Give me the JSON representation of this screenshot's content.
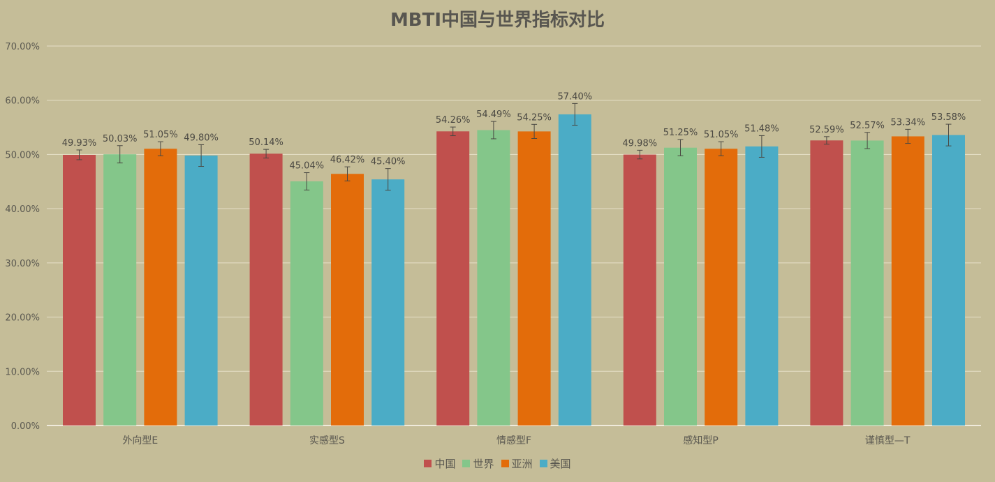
{
  "chart_data": {
    "type": "bar",
    "title": "MBTI中国与世界指标对比",
    "xlabel": "",
    "ylabel": "",
    "ylim": [
      0,
      70
    ],
    "y_ticks": [
      "0.00%",
      "10.00%",
      "20.00%",
      "30.00%",
      "40.00%",
      "50.00%",
      "60.00%",
      "70.00%"
    ],
    "grid": true,
    "legend_position": "bottom",
    "categories": [
      "外向型E",
      "实感型S",
      "情感型F",
      "感知型P",
      "谨慎型—T"
    ],
    "series": [
      {
        "name": "中国",
        "color": "#c0504d",
        "values": [
          49.93,
          50.14,
          54.26,
          49.98,
          52.59
        ],
        "labels": [
          "49.93%",
          "50.14%",
          "54.26%",
          "49.98%",
          "52.59%"
        ],
        "error": [
          0.9,
          0.8,
          0.8,
          0.8,
          0.7
        ]
      },
      {
        "name": "世界",
        "color": "#84c68a",
        "values": [
          50.03,
          45.04,
          54.49,
          51.25,
          52.57
        ],
        "labels": [
          "50.03%",
          "45.04%",
          "54.49%",
          "51.25%",
          "52.57%"
        ],
        "error": [
          1.6,
          1.6,
          1.6,
          1.5,
          1.5
        ]
      },
      {
        "name": "亚洲",
        "color": "#e36c0a",
        "values": [
          51.05,
          46.42,
          54.25,
          51.05,
          53.34
        ],
        "labels": [
          "51.05%",
          "46.42%",
          "54.25%",
          "51.05%",
          "53.34%"
        ],
        "error": [
          1.3,
          1.3,
          1.3,
          1.3,
          1.3
        ]
      },
      {
        "name": "美国",
        "color": "#4bacc6",
        "values": [
          49.8,
          45.4,
          57.4,
          51.48,
          53.58
        ],
        "labels": [
          "49.80%",
          "45.40%",
          "57.40%",
          "51.48%",
          "53.58%"
        ],
        "error": [
          2.0,
          2.0,
          2.0,
          2.0,
          2.0
        ]
      }
    ]
  },
  "style": {
    "background": "#c5bd98",
    "gridline_color": "#e6e0c8",
    "axis_color": "#efeadb",
    "error_bar_color": "#4a4842"
  }
}
